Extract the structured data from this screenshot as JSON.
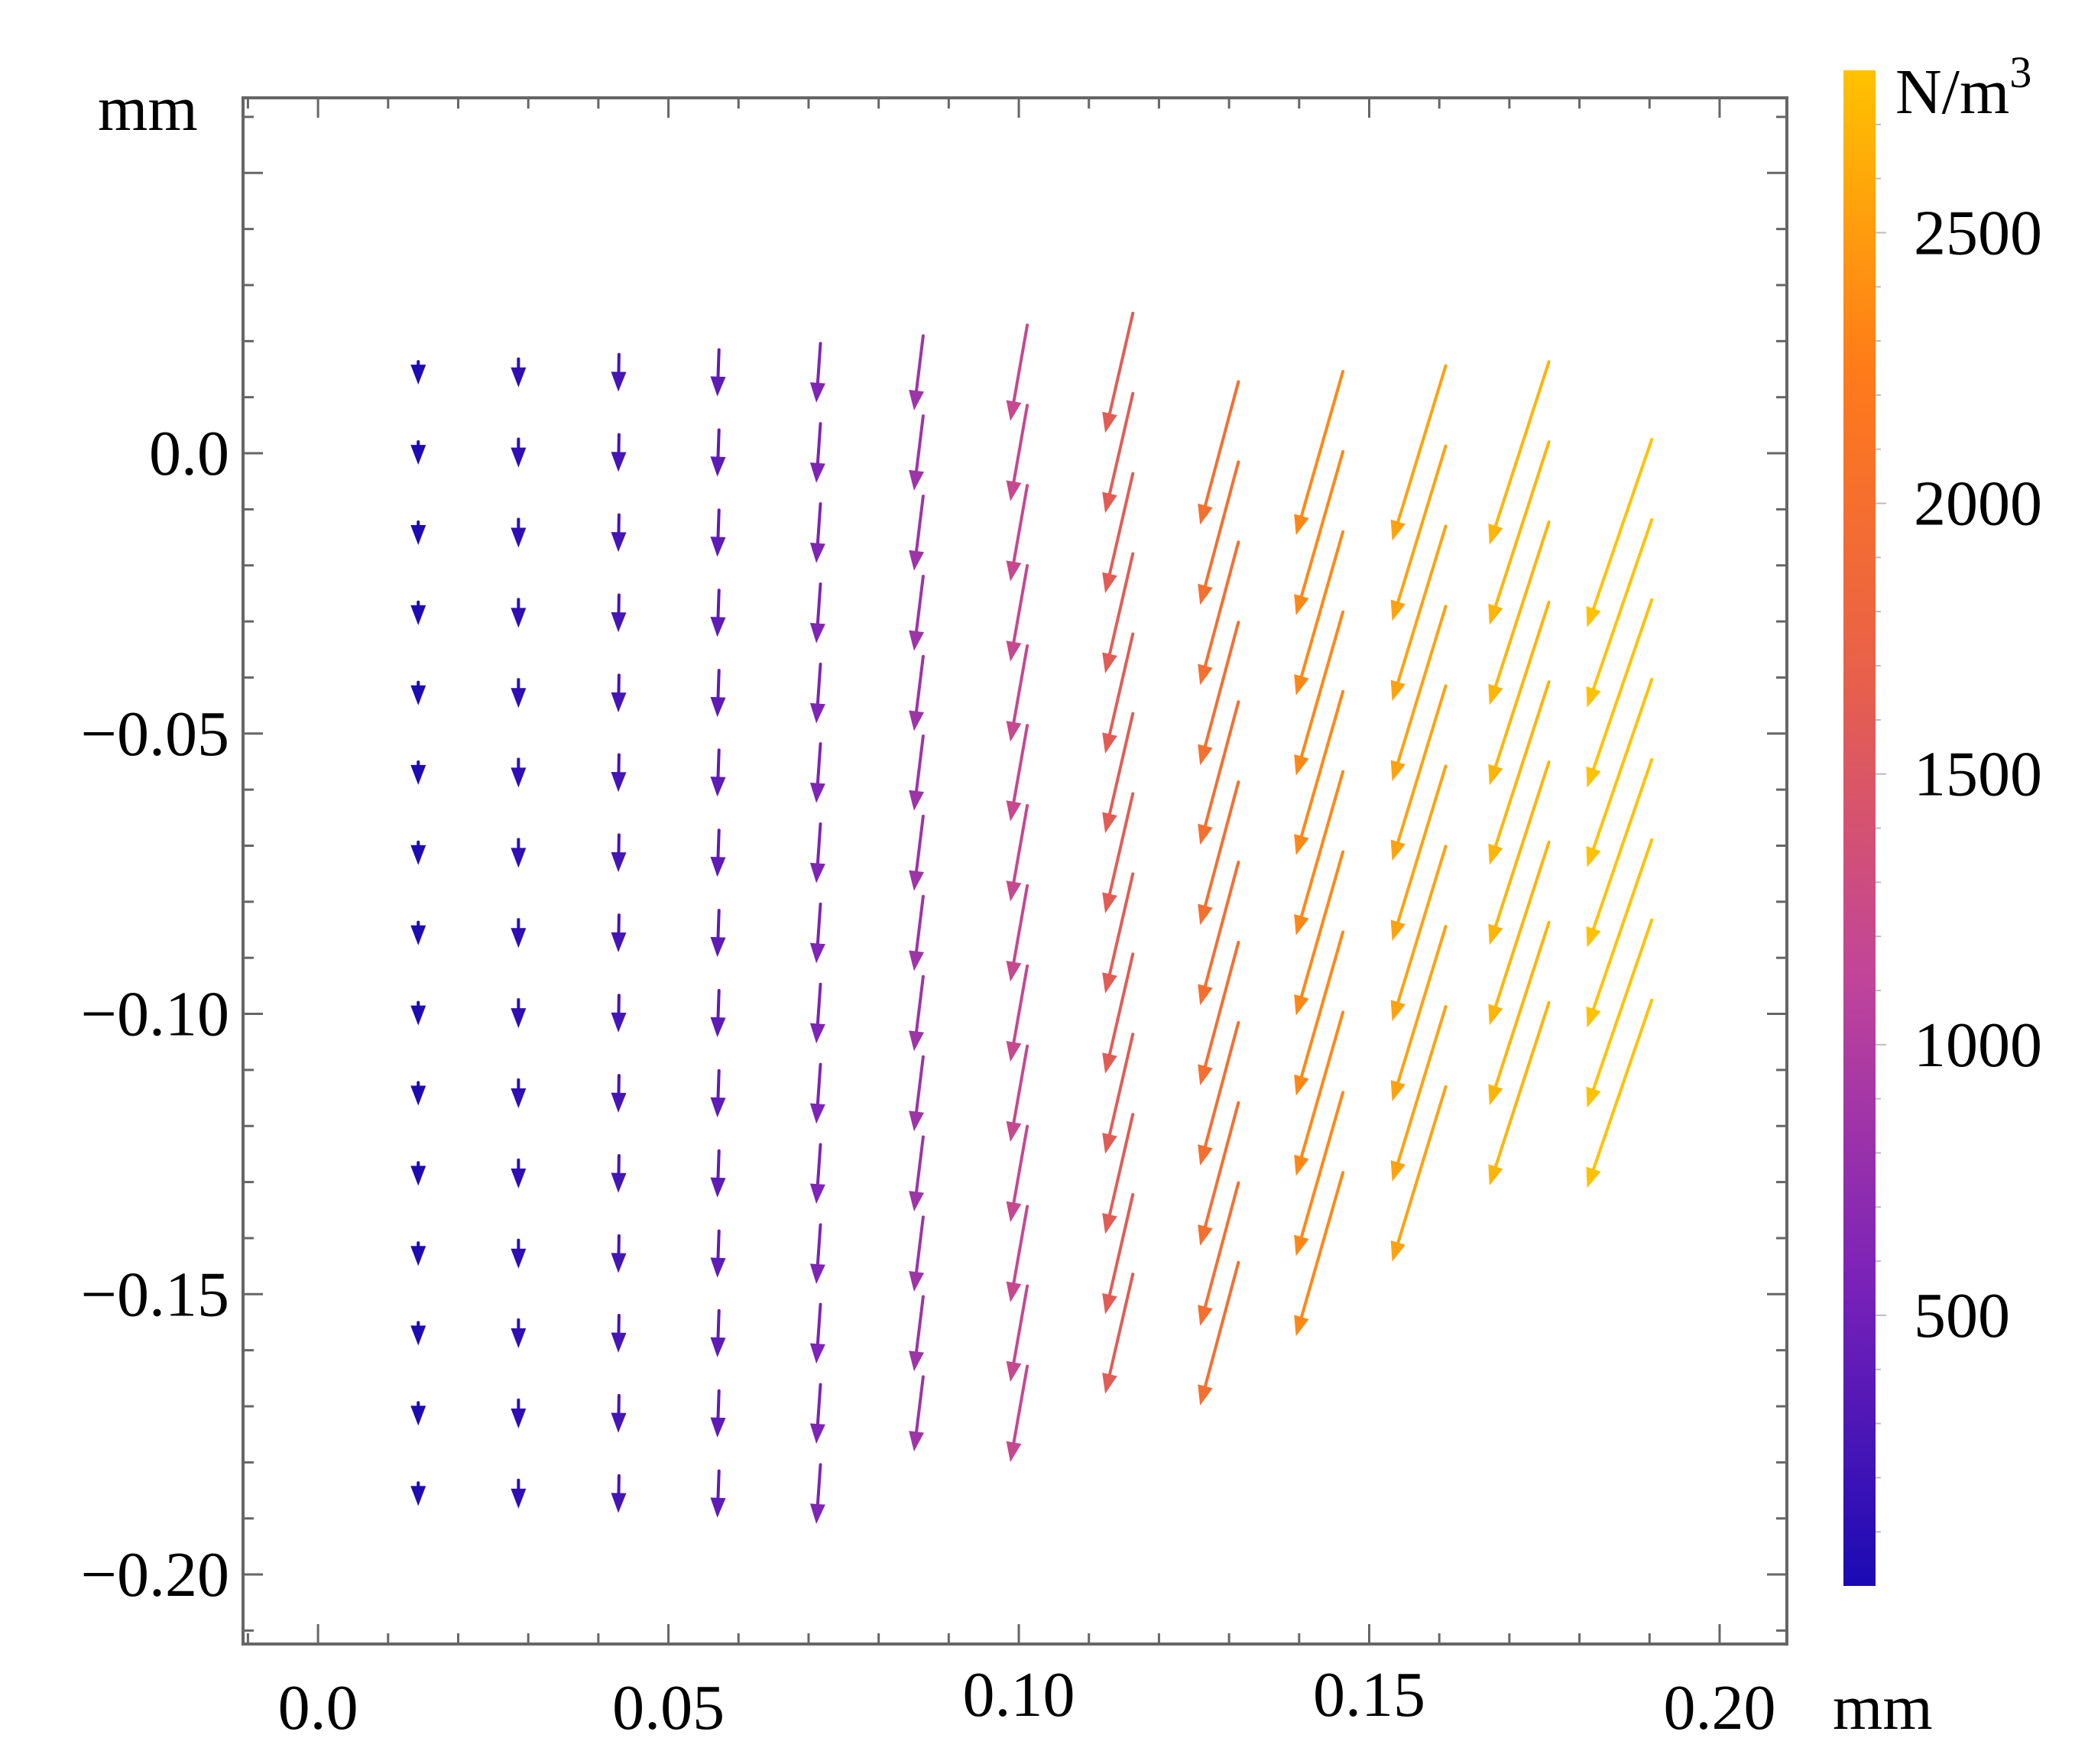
{
  "chart_data": {
    "type": "vector_field",
    "title": "",
    "xlabel": "mm",
    "ylabel": "mm",
    "xlim": [
      -0.0107,
      0.2096
    ],
    "ylim": [
      -0.2124,
      0.0634
    ],
    "x_ticks": [
      {
        "value": 0.0,
        "label": "0.0"
      },
      {
        "value": 0.05,
        "label": "0.05"
      },
      {
        "value": 0.1,
        "label": "0.10"
      },
      {
        "value": 0.15,
        "label": "0.15"
      },
      {
        "value": 0.2,
        "label": "0.20"
      }
    ],
    "y_ticks": [
      {
        "value": 0.0,
        "label": "0.0"
      },
      {
        "value": -0.05,
        "label": "−0.05"
      },
      {
        "value": -0.1,
        "label": "−0.10"
      },
      {
        "value": -0.15,
        "label": "−0.15"
      },
      {
        "value": -0.2,
        "label": "−0.20"
      }
    ],
    "x_minor_step": 0.01,
    "y_minor_step": 0.01,
    "grid": false,
    "colorbar": {
      "unit_label": "N/m",
      "unit_superscript": "3",
      "range": [
        0,
        2800
      ],
      "ticks": [
        {
          "value": 500,
          "label": "500"
        },
        {
          "value": 1000,
          "label": "1000"
        },
        {
          "value": 1500,
          "label": "1500"
        },
        {
          "value": 2000,
          "label": "2000"
        },
        {
          "value": 2500,
          "label": "2500"
        }
      ],
      "minor_step": 100,
      "colors": [
        "#1a0ab4",
        "#7a22b8",
        "#c0449a",
        "#e8604a",
        "#ff7a1a",
        "#ffc200"
      ]
    },
    "vector_grid": {
      "columns_x": [
        0.0143,
        0.0286,
        0.0429,
        0.0571,
        0.0714,
        0.0857,
        0.1,
        0.1143,
        0.1286,
        0.1429,
        0.1571,
        0.1714,
        0.1857
      ],
      "rows_y": [
        0.0143,
        0.0,
        -0.0143,
        -0.0286,
        -0.0429,
        -0.0571,
        -0.0714,
        -0.0857,
        -0.1,
        -0.1143,
        -0.1286,
        -0.1429,
        -0.1571,
        -0.1714,
        -0.1857
      ],
      "column_row_span": [
        [
          0,
          14
        ],
        [
          0,
          14
        ],
        [
          0,
          14
        ],
        [
          0,
          14
        ],
        [
          0,
          14
        ],
        [
          0,
          13
        ],
        [
          0,
          13
        ],
        [
          0,
          12
        ],
        [
          1,
          12
        ],
        [
          1,
          11
        ],
        [
          1,
          10
        ],
        [
          1,
          9
        ],
        [
          2,
          9
        ]
      ],
      "column_magnitude": [
        25,
        110,
        250,
        400,
        600,
        850,
        1200,
        1600,
        2000,
        2350,
        2550,
        2700,
        2800
      ],
      "column_angle_deg": [
        0,
        0,
        1,
        2,
        4,
        7,
        10,
        13,
        15,
        16,
        17,
        18,
        19
      ]
    }
  }
}
